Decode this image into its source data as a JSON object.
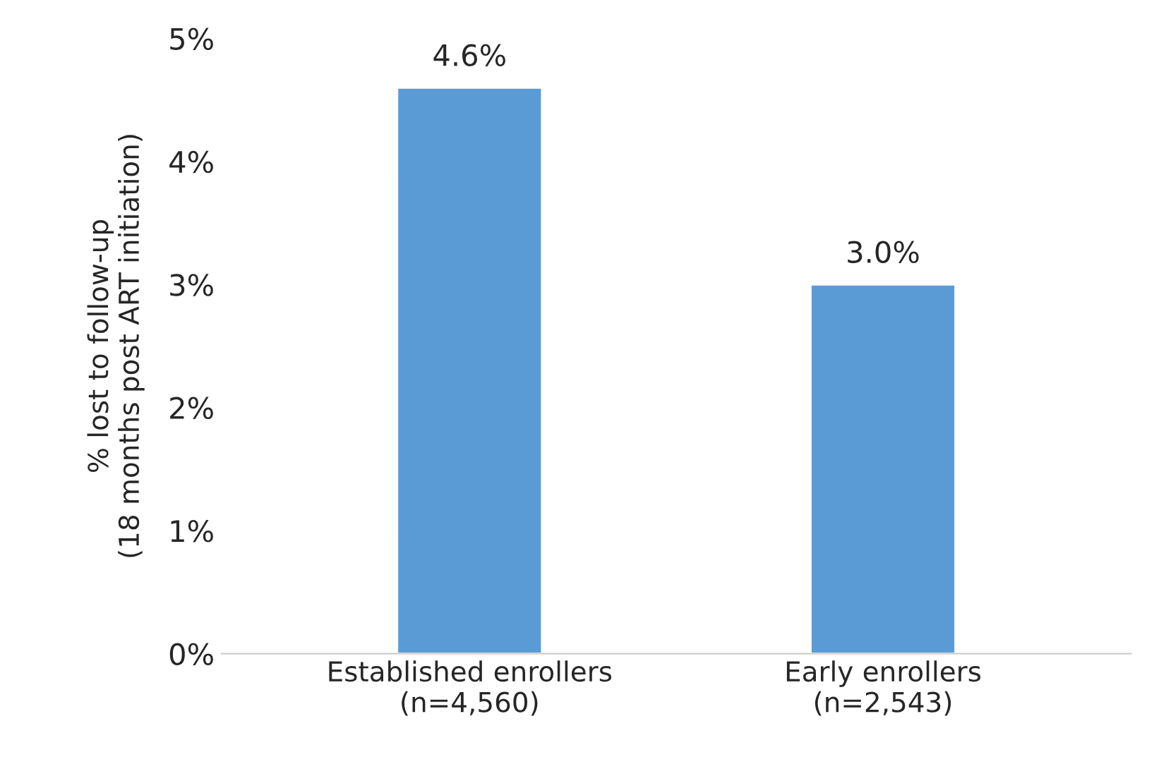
{
  "chart_data": {
    "type": "bar",
    "ylabel": "% lost to follow-up\n(18 months post ART initiation)",
    "categories": [
      "Established enrollers\n(n=4,560)",
      "Early enrollers\n(n=2,543)"
    ],
    "values": [
      4.6,
      3.0
    ],
    "value_labels": [
      "4.6%",
      "3.0%"
    ],
    "color": "#5b9bd5",
    "ylim": [
      0,
      5
    ],
    "yticks": [
      {
        "value": 0,
        "label": "0%"
      },
      {
        "value": 1,
        "label": "1%"
      },
      {
        "value": 2,
        "label": "2%"
      },
      {
        "value": 3,
        "label": "3%"
      },
      {
        "value": 4,
        "label": "4%"
      },
      {
        "value": 5,
        "label": "5%"
      }
    ],
    "grid": false
  }
}
